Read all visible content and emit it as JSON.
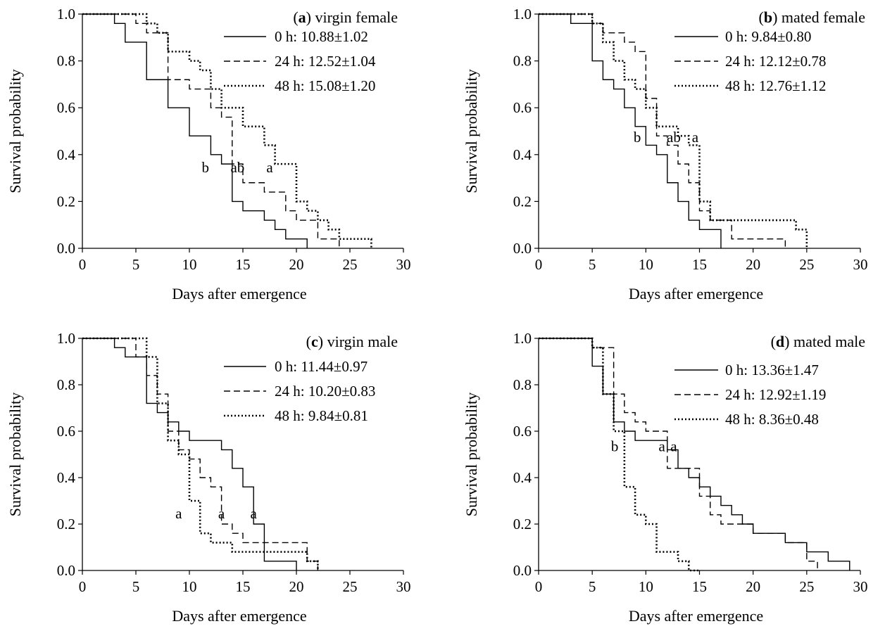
{
  "chart_data": [
    {
      "type": "line",
      "step": true,
      "panel_letter": "a",
      "title": "virgin female",
      "xlabel": "Days after emergence",
      "ylabel": "Survival probability",
      "xlim": [
        0,
        30
      ],
      "ylim": [
        0,
        1
      ],
      "xticks": [
        "0",
        "5",
        "10",
        "15",
        "20",
        "25",
        "30"
      ],
      "yticks": [
        "0.0",
        "0.2",
        "0.4",
        "0.6",
        "0.8",
        "1.0"
      ],
      "legend_position": "top-right",
      "series": [
        {
          "name": "0 h",
          "legend_value": "10.88±1.02",
          "style": "solid",
          "x": [
            0,
            3,
            4,
            6,
            8,
            10,
            12,
            13,
            14,
            15,
            17,
            18,
            19,
            21
          ],
          "y": [
            1.0,
            0.96,
            0.88,
            0.72,
            0.6,
            0.48,
            0.4,
            0.36,
            0.2,
            0.16,
            0.12,
            0.08,
            0.04,
            0.0
          ]
        },
        {
          "name": "24 h",
          "legend_value": "12.52±1.04",
          "style": "dashed",
          "x": [
            0,
            5,
            6,
            8,
            10,
            12,
            13,
            14,
            15,
            17,
            19,
            20,
            22,
            24
          ],
          "y": [
            1.0,
            0.96,
            0.92,
            0.72,
            0.68,
            0.6,
            0.56,
            0.36,
            0.28,
            0.24,
            0.16,
            0.12,
            0.04,
            0.0
          ]
        },
        {
          "name": "48 h",
          "legend_value": "15.08±1.20",
          "style": "dotted",
          "x": [
            0,
            6,
            7,
            8,
            10,
            11,
            12,
            13,
            15,
            17,
            18,
            20,
            21,
            22,
            23,
            24,
            27
          ],
          "y": [
            1.0,
            0.96,
            0.92,
            0.84,
            0.8,
            0.76,
            0.68,
            0.6,
            0.52,
            0.44,
            0.36,
            0.2,
            0.16,
            0.12,
            0.08,
            0.04,
            0.0
          ]
        }
      ],
      "annotations": [
        {
          "text": "b",
          "x": 11.5,
          "y": 0.3
        },
        {
          "text": "ab",
          "x": 14.5,
          "y": 0.3
        },
        {
          "text": "a",
          "x": 17.5,
          "y": 0.3
        }
      ]
    },
    {
      "type": "line",
      "step": true,
      "panel_letter": "b",
      "title": "mated female",
      "xlabel": "Days after emergence",
      "ylabel": "Survival probability",
      "xlim": [
        0,
        30
      ],
      "ylim": [
        0,
        1
      ],
      "xticks": [
        "0",
        "5",
        "10",
        "15",
        "20",
        "25",
        "30"
      ],
      "yticks": [
        "0.0",
        "0.2",
        "0.4",
        "0.6",
        "0.8",
        "1.0"
      ],
      "legend_position": "top-right",
      "series": [
        {
          "name": "0 h",
          "legend_value": "9.84±0.80",
          "style": "solid",
          "x": [
            0,
            3,
            5,
            6,
            7,
            8,
            9,
            10,
            11,
            12,
            13,
            14,
            15,
            17
          ],
          "y": [
            1.0,
            0.96,
            0.8,
            0.72,
            0.68,
            0.6,
            0.52,
            0.44,
            0.4,
            0.28,
            0.2,
            0.12,
            0.08,
            0.0
          ]
        },
        {
          "name": "24 h",
          "legend_value": "12.12±0.78",
          "style": "dashed",
          "x": [
            0,
            5,
            6,
            8,
            9,
            10,
            11,
            12,
            13,
            14,
            15,
            16,
            18,
            23
          ],
          "y": [
            1.0,
            0.96,
            0.92,
            0.88,
            0.84,
            0.64,
            0.48,
            0.44,
            0.36,
            0.28,
            0.16,
            0.12,
            0.04,
            0.0
          ]
        },
        {
          "name": "48 h",
          "legend_value": "12.76±1.12",
          "style": "dotted",
          "x": [
            0,
            5,
            6,
            7,
            8,
            9,
            10,
            11,
            12,
            13,
            14,
            15,
            16,
            24,
            25
          ],
          "y": [
            1.0,
            0.96,
            0.88,
            0.8,
            0.72,
            0.68,
            0.6,
            0.52,
            0.52,
            0.48,
            0.44,
            0.2,
            0.12,
            0.08,
            0.0
          ]
        }
      ],
      "annotations": [
        {
          "text": "b",
          "x": 9.2,
          "y": 0.43
        },
        {
          "text": "ab",
          "x": 12.6,
          "y": 0.43
        },
        {
          "text": "a",
          "x": 14.6,
          "y": 0.43
        }
      ]
    },
    {
      "type": "line",
      "step": true,
      "panel_letter": "c",
      "title": "virgin male",
      "xlabel": "Days after emergence",
      "ylabel": "Survival probability",
      "xlim": [
        0,
        30
      ],
      "ylim": [
        0,
        1
      ],
      "xticks": [
        "0",
        "5",
        "10",
        "15",
        "20",
        "25",
        "30"
      ],
      "yticks": [
        "0.0",
        "0.2",
        "0.4",
        "0.6",
        "0.8",
        "1.0"
      ],
      "legend_position": "top-right",
      "series": [
        {
          "name": "0 h",
          "legend_value": "11.44±0.97",
          "style": "solid",
          "x": [
            0,
            3,
            4,
            6,
            7,
            8,
            9,
            10,
            11,
            13,
            14,
            15,
            16,
            17,
            20
          ],
          "y": [
            1.0,
            0.96,
            0.92,
            0.72,
            0.68,
            0.64,
            0.6,
            0.56,
            0.56,
            0.52,
            0.44,
            0.36,
            0.2,
            0.04,
            0.0
          ]
        },
        {
          "name": "24 h",
          "legend_value": "10.20±0.83",
          "style": "dashed",
          "x": [
            0,
            5,
            6,
            7,
            8,
            9,
            10,
            11,
            12,
            13,
            14,
            15,
            21,
            22
          ],
          "y": [
            1.0,
            0.92,
            0.84,
            0.76,
            0.6,
            0.52,
            0.48,
            0.4,
            0.36,
            0.2,
            0.16,
            0.12,
            0.04,
            0.0
          ]
        },
        {
          "name": "48 h",
          "legend_value": "9.84±0.81",
          "style": "dotted",
          "x": [
            0,
            6,
            7,
            8,
            9,
            10,
            11,
            12,
            13,
            14,
            16,
            21,
            22
          ],
          "y": [
            1.0,
            0.92,
            0.72,
            0.56,
            0.5,
            0.3,
            0.16,
            0.12,
            0.12,
            0.08,
            0.08,
            0.04,
            0.0
          ]
        }
      ],
      "annotations": [
        {
          "text": "a",
          "x": 9.0,
          "y": 0.2
        },
        {
          "text": "a",
          "x": 13.0,
          "y": 0.2
        },
        {
          "text": "a",
          "x": 16.0,
          "y": 0.2
        }
      ]
    },
    {
      "type": "line",
      "step": true,
      "panel_letter": "d",
      "title": "mated male",
      "xlabel": "Days after emergence",
      "ylabel": "Survival probability",
      "xlim": [
        0,
        30
      ],
      "ylim": [
        0,
        1
      ],
      "xticks": [
        "0",
        "5",
        "10",
        "15",
        "20",
        "25",
        "30"
      ],
      "yticks": [
        "0.0",
        "0.2",
        "0.4",
        "0.6",
        "0.8",
        "1.0"
      ],
      "legend_position": "top-right",
      "series": [
        {
          "name": "0 h",
          "legend_value": "13.36±1.47",
          "style": "solid",
          "x": [
            0,
            5,
            6,
            7,
            8,
            9,
            11,
            12,
            13,
            14,
            15,
            16,
            17,
            18,
            19,
            20,
            22,
            23,
            25,
            26,
            27,
            29
          ],
          "y": [
            1.0,
            0.88,
            0.76,
            0.64,
            0.6,
            0.56,
            0.56,
            0.52,
            0.44,
            0.4,
            0.36,
            0.32,
            0.28,
            0.24,
            0.2,
            0.16,
            0.16,
            0.12,
            0.08,
            0.08,
            0.04,
            0.0
          ]
        },
        {
          "name": "24 h",
          "legend_value": "12.92±1.19",
          "style": "dashed",
          "x": [
            0,
            5,
            6,
            7,
            8,
            9,
            10,
            12,
            13,
            15,
            16,
            17,
            19,
            20,
            22,
            23,
            25,
            26
          ],
          "y": [
            1.0,
            0.96,
            0.96,
            0.76,
            0.68,
            0.64,
            0.6,
            0.44,
            0.44,
            0.32,
            0.24,
            0.2,
            0.2,
            0.16,
            0.16,
            0.12,
            0.04,
            0.0
          ]
        },
        {
          "name": "48 h",
          "legend_value": "8.36±0.48",
          "style": "dotted",
          "x": [
            0,
            5,
            6,
            7,
            8,
            9,
            10,
            11,
            13,
            14,
            15
          ],
          "y": [
            1.0,
            0.96,
            0.76,
            0.6,
            0.36,
            0.24,
            0.2,
            0.08,
            0.04,
            0.0,
            0.0
          ]
        }
      ],
      "annotations": [
        {
          "text": "b",
          "x": 7.1,
          "y": 0.49
        },
        {
          "text": "a",
          "x": 11.5,
          "y": 0.49
        },
        {
          "text": "a",
          "x": 12.6,
          "y": 0.49
        }
      ]
    }
  ]
}
